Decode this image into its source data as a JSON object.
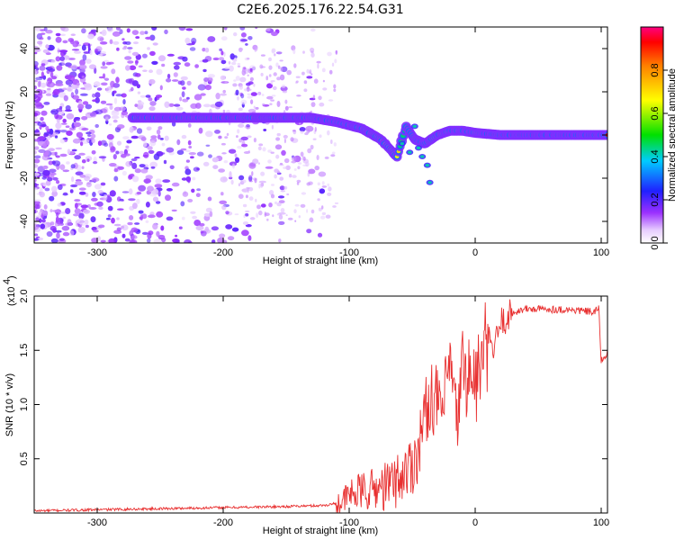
{
  "title": "C2E6.2025.176.22.54.G31",
  "chart_data": [
    {
      "type": "heatmap",
      "xlabel": "Height of straight line (km)",
      "ylabel": "Frequency (Hz)",
      "xlim": [
        -350,
        105
      ],
      "ylim": [
        -50,
        50
      ],
      "xticks": [
        -300,
        -200,
        -100,
        0,
        100
      ],
      "xtick_labels": [
        "-300",
        "-200",
        "-100",
        "0",
        "100"
      ],
      "yticks": [
        -40,
        -20,
        0,
        20,
        40
      ],
      "ytick_labels": [
        "-40",
        "-20",
        "0",
        "20",
        "40"
      ],
      "colorbar": {
        "label": "Normalized spectral amplitude",
        "range": [
          0,
          1
        ],
        "ticks": [
          0.0,
          0.2,
          0.4,
          0.6,
          0.8
        ],
        "tick_labels": [
          "0.0",
          "0.2",
          "0.4",
          "0.6",
          "0.8"
        ]
      },
      "ridge": {
        "x": [
          -270,
          -240,
          -200,
          -180,
          -160,
          -130,
          -110,
          -90,
          -75,
          -62,
          -55,
          -48,
          -40,
          -30,
          -20,
          -10,
          0,
          20,
          50,
          80,
          105
        ],
        "y": [
          8,
          8,
          8,
          8,
          8,
          8,
          6,
          3,
          -2,
          -10,
          4,
          -2,
          -4,
          0,
          2,
          2,
          1,
          0,
          0,
          0,
          0
        ]
      }
    },
    {
      "type": "line",
      "xlabel": "Height of straight line (km)",
      "ylabel": "SNR (10 * v/v)",
      "y_multiplier_label": "(x10",
      "y_multiplier_exp": "4",
      "xlim": [
        -350,
        105
      ],
      "ylim": [
        0,
        2.0
      ],
      "xticks": [
        -300,
        -200,
        -100,
        0,
        100
      ],
      "xtick_labels": [
        "-300",
        "-200",
        "-100",
        "0",
        "100"
      ],
      "yticks": [
        0.5,
        1.0,
        1.5,
        2.0
      ],
      "ytick_labels": [
        "0.5",
        "1.0",
        "1.5",
        "2.0"
      ],
      "series_color": "#e83030",
      "x": [
        -350,
        -300,
        -250,
        -200,
        -150,
        -120,
        -105,
        -100,
        -90,
        -80,
        -70,
        -60,
        -50,
        -45,
        -40,
        -35,
        -30,
        -25,
        -20,
        -15,
        -10,
        -5,
        0,
        5,
        10,
        15,
        20,
        30,
        40,
        60,
        80,
        95,
        98,
        100,
        105
      ],
      "y": [
        0.02,
        0.03,
        0.04,
        0.05,
        0.06,
        0.07,
        0.1,
        0.17,
        0.2,
        0.22,
        0.25,
        0.32,
        0.45,
        0.6,
        0.9,
        1.1,
        1.0,
        0.95,
        1.4,
        0.8,
        1.35,
        1.25,
        1.2,
        1.35,
        1.6,
        1.5,
        1.75,
        1.85,
        1.88,
        1.88,
        1.87,
        1.85,
        1.9,
        1.4,
        1.48
      ]
    }
  ]
}
